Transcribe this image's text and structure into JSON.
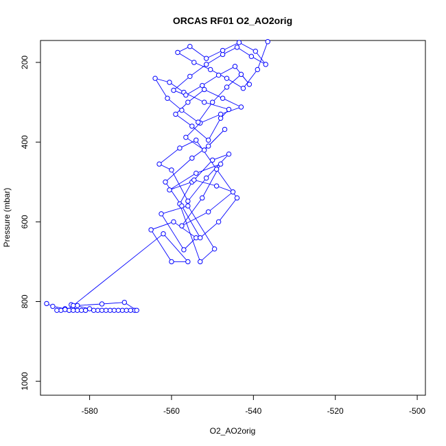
{
  "chart_data": {
    "type": "scatter",
    "title": "ORCAS RF01 O2_AO2orig",
    "xlabel": "O2_AO2orig",
    "ylabel": "Pressure (mbar)",
    "xlim": [
      -592,
      -498
    ],
    "ylim": [
      1035,
      145
    ],
    "y_reversed": true,
    "grid": false,
    "legend": "none",
    "x_ticks": [
      -580,
      -560,
      -540,
      -520,
      -500
    ],
    "y_ticks": [
      200,
      400,
      600,
      800,
      1000
    ],
    "x_tick_labels": [
      "-580",
      "-560",
      "-540",
      "-520",
      "-500"
    ],
    "y_tick_labels": [
      "200",
      "400",
      "600",
      "800",
      "1000"
    ],
    "marker": "open-circle",
    "connected": true,
    "colors": {
      "series": "#0000ff",
      "axis": "#000000"
    },
    "series": [
      {
        "x": [
          -590.5,
          -589.0,
          -586.0,
          -583.0,
          -584.5,
          -580.0,
          -578.0,
          -575.0,
          -572.0,
          -569.0,
          -571.0,
          -574.0,
          -577.0,
          -581.0,
          -585.0,
          -587.0,
          -588.0,
          -585.0,
          -582.0,
          -579.0,
          -576.0,
          -573.0,
          -570.0,
          -568.5,
          -571.5,
          -577.0,
          -583.0,
          -586.0,
          -584.0,
          -581.0
        ],
        "y": [
          805,
          812,
          818,
          822,
          808,
          818,
          822,
          822,
          822,
          822,
          822,
          822,
          822,
          822,
          822,
          822,
          822,
          822,
          822,
          822,
          822,
          822,
          822,
          822,
          802,
          806,
          810,
          820,
          822,
          822
        ]
      },
      {
        "x": [
          -584.0,
          -562.0,
          -556.0,
          -560.0,
          -565.0,
          -559.5,
          -554.0,
          -557.0,
          -562.5,
          -556.0,
          -549.5,
          -553.0,
          -558.0,
          -555.0,
          -560.5,
          -554.0,
          -548.0,
          -552.5,
          -557.5,
          -551.0,
          -545.0,
          -549.0,
          -554.5,
          -550.0,
          -546.0,
          -551.5,
          -556.0,
          -560.0,
          -563.0,
          -558.0,
          -554.0,
          -549.0,
          -544.0,
          -548.5,
          -553.0,
          -557.5,
          -561.5,
          -555.0,
          -551.0,
          -547.0,
          -552.0,
          -556.5,
          -553.0,
          -548.0,
          -543.0,
          -547.5,
          -552.0,
          -556.0,
          -559.0,
          -555.0,
          -551.0,
          -548.0,
          -546.0,
          -552.0,
          -557.0,
          -560.5,
          -564.0,
          -561.0,
          -557.5,
          -553.5,
          -550.0,
          -546.5,
          -543.0,
          -541.0,
          -544.5,
          -548.5,
          -552.5,
          -556.5,
          -559.5,
          -555.5,
          -551.5,
          -547.5,
          -544.0,
          -540.5,
          -537.0,
          -539.5,
          -543.5,
          -547.5,
          -551.5,
          -555.5,
          -558.5,
          -554.5,
          -550.5,
          -546.5,
          -542.5,
          -539.0,
          -536.5
        ],
        "y": [
          810,
          630,
          700,
          700,
          620,
          600,
          640,
          670,
          580,
          560,
          668,
          700,
          555,
          500,
          520,
          478,
          455,
          540,
          610,
          575,
          525,
          510,
          495,
          445,
          430,
          490,
          548,
          470,
          455,
          415,
          395,
          468,
          540,
          600,
          640,
          560,
          500,
          440,
          410,
          368,
          420,
          388,
          352,
          330,
          312,
          290,
          268,
          300,
          330,
          360,
          395,
          340,
          318,
          300,
          275,
          250,
          240,
          290,
          320,
          350,
          300,
          262,
          230,
          255,
          210,
          232,
          258,
          282,
          270,
          235,
          205,
          180,
          162,
          185,
          205,
          172,
          150,
          170,
          190,
          160,
          175,
          200,
          218,
          240,
          265,
          218,
          148
        ]
      }
    ]
  }
}
